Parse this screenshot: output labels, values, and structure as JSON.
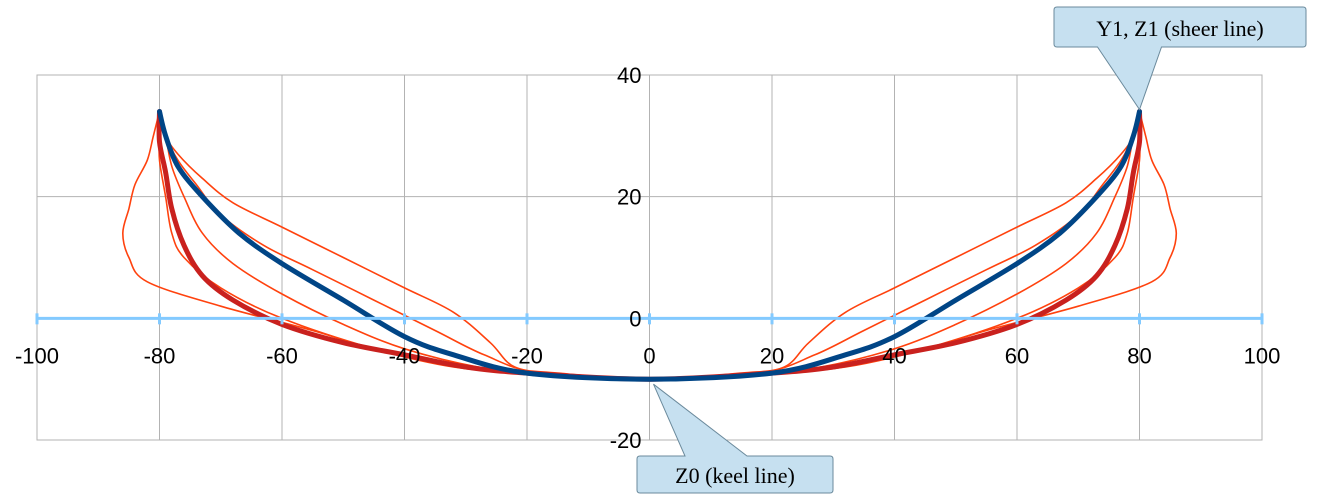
{
  "chart_data": {
    "type": "line",
    "title": "",
    "xlabel": "",
    "ylabel": "",
    "xlim": [
      -100,
      100
    ],
    "ylim": [
      -20,
      40
    ],
    "x_ticks": [
      "-100",
      "-80",
      "-60",
      "-40",
      "-20",
      "0",
      "20",
      "40",
      "60",
      "80",
      "100"
    ],
    "y_ticks": [
      "-20",
      "0",
      "20",
      "40"
    ],
    "grid": true,
    "legend": "none",
    "colors": {
      "grid": "#b3b3b3",
      "x_axis": "#83caff",
      "thin_curves": "#ff420e",
      "dark_red": "#c9211e",
      "blue": "#004586",
      "callout_fill": "#c6e0f0",
      "callout_stroke": "#6b8a9c"
    },
    "annotations": [
      {
        "text": "Y1, Z1 (sheer line)",
        "x": 80,
        "y": 34
      },
      {
        "text": "Z0 (keel line)",
        "x": 0,
        "y": -10
      }
    ],
    "series": [
      {
        "color": "#ff420e",
        "width": 1.6,
        "points": [
          [
            -80,
            34
          ],
          [
            -81,
            30
          ],
          [
            -82,
            26
          ],
          [
            -84,
            22
          ],
          [
            -85,
            18
          ],
          [
            -86,
            14
          ],
          [
            -85,
            10
          ],
          [
            -82,
            6
          ],
          [
            -70,
            2
          ],
          [
            -55,
            -2
          ],
          [
            -45,
            -5
          ],
          [
            -30,
            -8
          ],
          [
            -20,
            -9
          ],
          [
            0,
            -10
          ],
          [
            20,
            -9
          ],
          [
            30,
            -8
          ],
          [
            45,
            -5
          ],
          [
            55,
            -2
          ],
          [
            70,
            2
          ],
          [
            82,
            6
          ],
          [
            85,
            10
          ],
          [
            86,
            14
          ],
          [
            85,
            18
          ],
          [
            84,
            22
          ],
          [
            82,
            26
          ],
          [
            81,
            30
          ],
          [
            80,
            34
          ]
        ]
      },
      {
        "color": "#ff420e",
        "width": 1.6,
        "points": [
          [
            -80,
            34
          ],
          [
            -80,
            30
          ],
          [
            -80,
            26
          ],
          [
            -79,
            20
          ],
          [
            -78,
            14
          ],
          [
            -76,
            10
          ],
          [
            -70,
            5
          ],
          [
            -60,
            0
          ],
          [
            -45,
            -5
          ],
          [
            -32,
            -8
          ],
          [
            -20,
            -9
          ],
          [
            0,
            -10
          ],
          [
            20,
            -9
          ],
          [
            32,
            -8
          ],
          [
            45,
            -5
          ],
          [
            60,
            0
          ],
          [
            70,
            5
          ],
          [
            76,
            10
          ],
          [
            78,
            14
          ],
          [
            79,
            20
          ],
          [
            80,
            26
          ],
          [
            80,
            30
          ],
          [
            80,
            34
          ]
        ]
      },
      {
        "color": "#ff420e",
        "width": 1.6,
        "points": [
          [
            -80,
            34
          ],
          [
            -79,
            30
          ],
          [
            -78,
            25
          ],
          [
            -76,
            20
          ],
          [
            -73,
            14
          ],
          [
            -68,
            9
          ],
          [
            -60,
            4
          ],
          [
            -50,
            -1
          ],
          [
            -40,
            -5
          ],
          [
            -28,
            -8
          ],
          [
            -18,
            -9
          ],
          [
            0,
            -10
          ],
          [
            18,
            -9
          ],
          [
            28,
            -8
          ],
          [
            40,
            -5
          ],
          [
            50,
            -1
          ],
          [
            60,
            4
          ],
          [
            68,
            9
          ],
          [
            73,
            14
          ],
          [
            76,
            20
          ],
          [
            78,
            25
          ],
          [
            79,
            30
          ],
          [
            80,
            34
          ]
        ]
      },
      {
        "color": "#ff420e",
        "width": 1.6,
        "points": [
          [
            -80,
            34
          ],
          [
            -79,
            30
          ],
          [
            -77,
            26
          ],
          [
            -74,
            22
          ],
          [
            -70,
            17
          ],
          [
            -63,
            12
          ],
          [
            -55,
            8
          ],
          [
            -45,
            3
          ],
          [
            -35,
            -2
          ],
          [
            -27,
            -6
          ],
          [
            -18,
            -9
          ],
          [
            0,
            -10
          ],
          [
            18,
            -9
          ],
          [
            27,
            -6
          ],
          [
            35,
            -2
          ],
          [
            45,
            3
          ],
          [
            55,
            8
          ],
          [
            63,
            12
          ],
          [
            70,
            17
          ],
          [
            74,
            22
          ],
          [
            77,
            26
          ],
          [
            79,
            30
          ],
          [
            80,
            34
          ]
        ]
      },
      {
        "color": "#ff420e",
        "width": 1.6,
        "points": [
          [
            -80,
            34
          ],
          [
            -79,
            30
          ],
          [
            -77,
            27
          ],
          [
            -73,
            23
          ],
          [
            -68,
            19
          ],
          [
            -60,
            15
          ],
          [
            -50,
            10
          ],
          [
            -40,
            5
          ],
          [
            -32,
            1
          ],
          [
            -26,
            -4
          ],
          [
            -22,
            -8
          ],
          [
            -15,
            -9
          ],
          [
            0,
            -10
          ],
          [
            15,
            -9
          ],
          [
            22,
            -8
          ],
          [
            26,
            -4
          ],
          [
            32,
            1
          ],
          [
            40,
            5
          ],
          [
            50,
            10
          ],
          [
            60,
            15
          ],
          [
            68,
            19
          ],
          [
            73,
            23
          ],
          [
            77,
            27
          ],
          [
            79,
            30
          ],
          [
            80,
            34
          ]
        ]
      },
      {
        "color": "#c9211e",
        "width": 5,
        "points": [
          [
            -80,
            34
          ],
          [
            -80,
            29
          ],
          [
            -79,
            24
          ],
          [
            -78,
            18
          ],
          [
            -76,
            12
          ],
          [
            -73,
            7
          ],
          [
            -68,
            3
          ],
          [
            -60,
            -1
          ],
          [
            -50,
            -4
          ],
          [
            -40,
            -6
          ],
          [
            -30,
            -8
          ],
          [
            -20,
            -9
          ],
          [
            0,
            -10
          ],
          [
            20,
            -9
          ],
          [
            30,
            -8
          ],
          [
            40,
            -6
          ],
          [
            50,
            -4
          ],
          [
            60,
            -1
          ],
          [
            68,
            3
          ],
          [
            73,
            7
          ],
          [
            76,
            12
          ],
          [
            78,
            18
          ],
          [
            79,
            24
          ],
          [
            80,
            29
          ],
          [
            80,
            34
          ]
        ]
      },
      {
        "color": "#004586",
        "width": 5,
        "points": [
          [
            -80,
            34
          ],
          [
            -79,
            30
          ],
          [
            -77,
            25
          ],
          [
            -73,
            20
          ],
          [
            -67,
            14
          ],
          [
            -60,
            9
          ],
          [
            -50,
            3
          ],
          [
            -40,
            -3
          ],
          [
            -32,
            -6
          ],
          [
            -20,
            -9
          ],
          [
            0,
            -10
          ],
          [
            20,
            -9
          ],
          [
            32,
            -6
          ],
          [
            40,
            -3
          ],
          [
            50,
            3
          ],
          [
            60,
            9
          ],
          [
            67,
            14
          ],
          [
            73,
            20
          ],
          [
            77,
            25
          ],
          [
            79,
            30
          ],
          [
            80,
            34
          ]
        ]
      }
    ]
  }
}
